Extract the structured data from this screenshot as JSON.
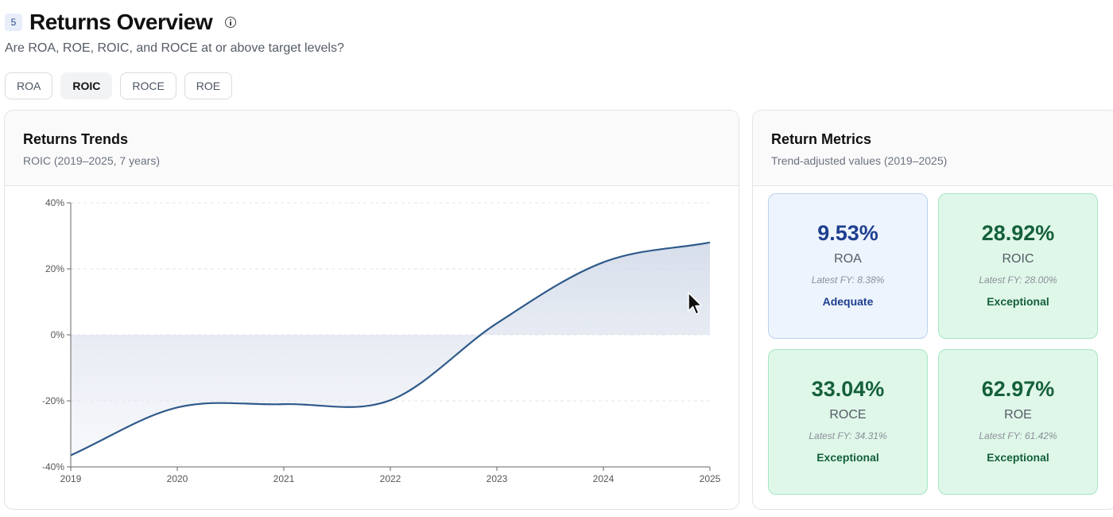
{
  "header": {
    "step": "5",
    "title": "Returns Overview",
    "subtitle": "Are ROA, ROE, ROIC, and ROCE at or above target levels?"
  },
  "tabs": [
    {
      "label": "ROA",
      "active": false
    },
    {
      "label": "ROIC",
      "active": true
    },
    {
      "label": "ROCE",
      "active": false
    },
    {
      "label": "ROE",
      "active": false
    }
  ],
  "trends": {
    "title": "Returns Trends",
    "subtitle": "ROIC (2019–2025, 7 years)"
  },
  "chart_data": {
    "type": "area",
    "x": [
      2019,
      2020,
      2021,
      2022,
      2023,
      2024,
      2025
    ],
    "series": [
      {
        "values": [
          -36.5,
          -22.0,
          -21.0,
          -19.8,
          3.5,
          22.0,
          28.0
        ]
      }
    ],
    "yticks": [
      "40%",
      "20%",
      "0%",
      "-20%",
      "-40%"
    ],
    "xticks": [
      "2019",
      "2020",
      "2021",
      "2022",
      "2023",
      "2024",
      "2025"
    ],
    "ylim": [
      -40,
      40
    ],
    "grid": true,
    "line_color": "#2f5a8a"
  },
  "metrics": {
    "title": "Return Metrics",
    "subtitle": "Trend-adjusted values (2019–2025)",
    "items": [
      {
        "value": "9.53%",
        "name": "ROA",
        "latest": "Latest FY: 8.38%",
        "status": "Adequate",
        "tone": "adequate"
      },
      {
        "value": "28.92%",
        "name": "ROIC",
        "latest": "Latest FY: 28.00%",
        "status": "Exceptional",
        "tone": "exceptional"
      },
      {
        "value": "33.04%",
        "name": "ROCE",
        "latest": "Latest FY: 34.31%",
        "status": "Exceptional",
        "tone": "exceptional"
      },
      {
        "value": "62.97%",
        "name": "ROE",
        "latest": "Latest FY: 61.42%",
        "status": "Exceptional",
        "tone": "exceptional"
      }
    ]
  }
}
